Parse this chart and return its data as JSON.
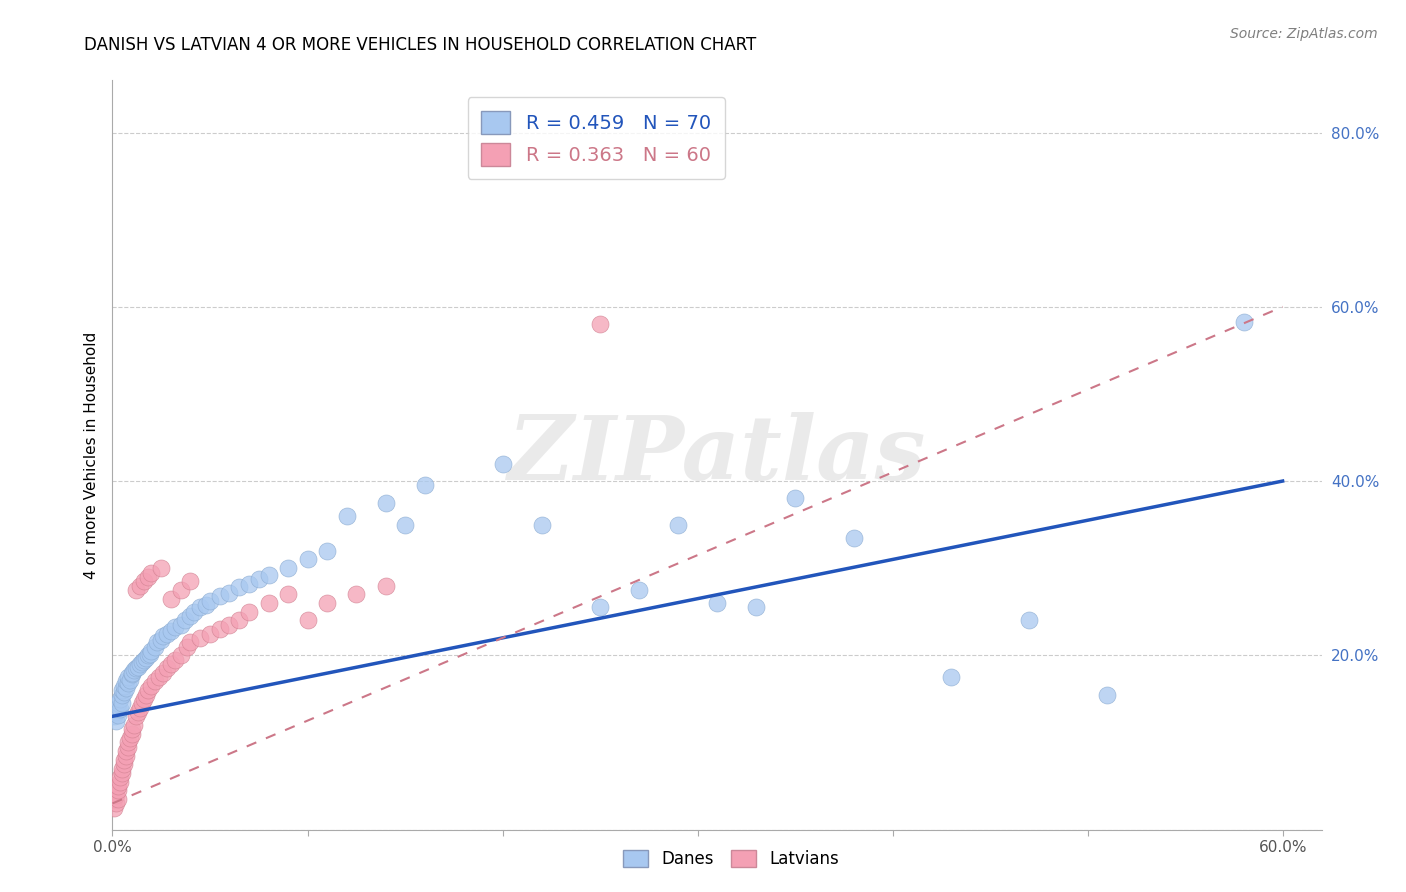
{
  "title": "DANISH VS LATVIAN 4 OR MORE VEHICLES IN HOUSEHOLD CORRELATION CHART",
  "source": "Source: ZipAtlas.com",
  "ylabel_text": "4 or more Vehicles in Household",
  "xlim": [
    0.0,
    0.62
  ],
  "ylim": [
    0.0,
    0.86
  ],
  "xticks": [
    0.0,
    0.1,
    0.2,
    0.3,
    0.4,
    0.5,
    0.6
  ],
  "yticks": [
    0.0,
    0.2,
    0.4,
    0.6,
    0.8
  ],
  "ytick_labels": [
    "",
    "20.0%",
    "40.0%",
    "60.0%",
    "80.0%"
  ],
  "xtick_labels": [
    "0.0%",
    "",
    "",
    "",
    "",
    "",
    "60.0%"
  ],
  "danes_R": 0.459,
  "danes_N": 70,
  "latvians_R": 0.363,
  "latvians_N": 60,
  "danes_color": "#A8C8F0",
  "latvians_color": "#F4A0B4",
  "danes_line_color": "#2255BB",
  "latvians_line_color": "#CC7788",
  "watermark": "ZIPatlas",
  "danes_line_x0": 0.0,
  "danes_line_y0": 0.13,
  "danes_line_x1": 0.6,
  "danes_line_y1": 0.4,
  "latvians_line_x0": 0.0,
  "latvians_line_y0": 0.03,
  "latvians_line_x1": 0.6,
  "latvians_line_y1": 0.6,
  "danes_x": [
    0.001,
    0.002,
    0.002,
    0.003,
    0.003,
    0.003,
    0.004,
    0.004,
    0.005,
    0.005,
    0.005,
    0.006,
    0.006,
    0.007,
    0.007,
    0.008,
    0.008,
    0.009,
    0.01,
    0.01,
    0.011,
    0.012,
    0.013,
    0.014,
    0.015,
    0.016,
    0.017,
    0.018,
    0.019,
    0.02,
    0.022,
    0.023,
    0.025,
    0.026,
    0.028,
    0.03,
    0.032,
    0.035,
    0.037,
    0.04,
    0.042,
    0.045,
    0.048,
    0.05,
    0.055,
    0.06,
    0.065,
    0.07,
    0.075,
    0.08,
    0.09,
    0.1,
    0.11,
    0.12,
    0.14,
    0.15,
    0.16,
    0.2,
    0.22,
    0.25,
    0.27,
    0.29,
    0.31,
    0.33,
    0.35,
    0.38,
    0.43,
    0.47,
    0.51,
    0.58
  ],
  "danes_y": [
    0.13,
    0.135,
    0.125,
    0.14,
    0.132,
    0.145,
    0.138,
    0.15,
    0.145,
    0.155,
    0.16,
    0.158,
    0.165,
    0.162,
    0.17,
    0.168,
    0.175,
    0.172,
    0.178,
    0.18,
    0.183,
    0.185,
    0.187,
    0.19,
    0.192,
    0.195,
    0.197,
    0.2,
    0.202,
    0.205,
    0.21,
    0.215,
    0.218,
    0.222,
    0.225,
    0.228,
    0.232,
    0.235,
    0.24,
    0.245,
    0.25,
    0.255,
    0.258,
    0.262,
    0.268,
    0.272,
    0.278,
    0.282,
    0.288,
    0.292,
    0.3,
    0.31,
    0.32,
    0.36,
    0.375,
    0.35,
    0.395,
    0.42,
    0.35,
    0.255,
    0.275,
    0.35,
    0.26,
    0.255,
    0.38,
    0.335,
    0.175,
    0.24,
    0.155,
    0.582
  ],
  "latvians_x": [
    0.001,
    0.001,
    0.002,
    0.002,
    0.003,
    0.003,
    0.003,
    0.004,
    0.004,
    0.005,
    0.005,
    0.006,
    0.006,
    0.007,
    0.007,
    0.008,
    0.008,
    0.009,
    0.01,
    0.01,
    0.011,
    0.012,
    0.013,
    0.014,
    0.015,
    0.016,
    0.017,
    0.018,
    0.02,
    0.022,
    0.024,
    0.026,
    0.028,
    0.03,
    0.032,
    0.035,
    0.038,
    0.04,
    0.045,
    0.05,
    0.055,
    0.06,
    0.065,
    0.07,
    0.08,
    0.09,
    0.1,
    0.11,
    0.125,
    0.14,
    0.012,
    0.014,
    0.016,
    0.018,
    0.02,
    0.025,
    0.03,
    0.035,
    0.04,
    0.25
  ],
  "latvians_y": [
    0.025,
    0.035,
    0.03,
    0.04,
    0.035,
    0.045,
    0.05,
    0.055,
    0.06,
    0.065,
    0.07,
    0.075,
    0.08,
    0.085,
    0.09,
    0.095,
    0.1,
    0.105,
    0.11,
    0.115,
    0.12,
    0.13,
    0.135,
    0.14,
    0.145,
    0.15,
    0.155,
    0.16,
    0.165,
    0.17,
    0.175,
    0.18,
    0.185,
    0.19,
    0.195,
    0.2,
    0.21,
    0.215,
    0.22,
    0.225,
    0.23,
    0.235,
    0.24,
    0.25,
    0.26,
    0.27,
    0.24,
    0.26,
    0.27,
    0.28,
    0.275,
    0.28,
    0.285,
    0.29,
    0.295,
    0.3,
    0.265,
    0.275,
    0.285,
    0.58
  ]
}
